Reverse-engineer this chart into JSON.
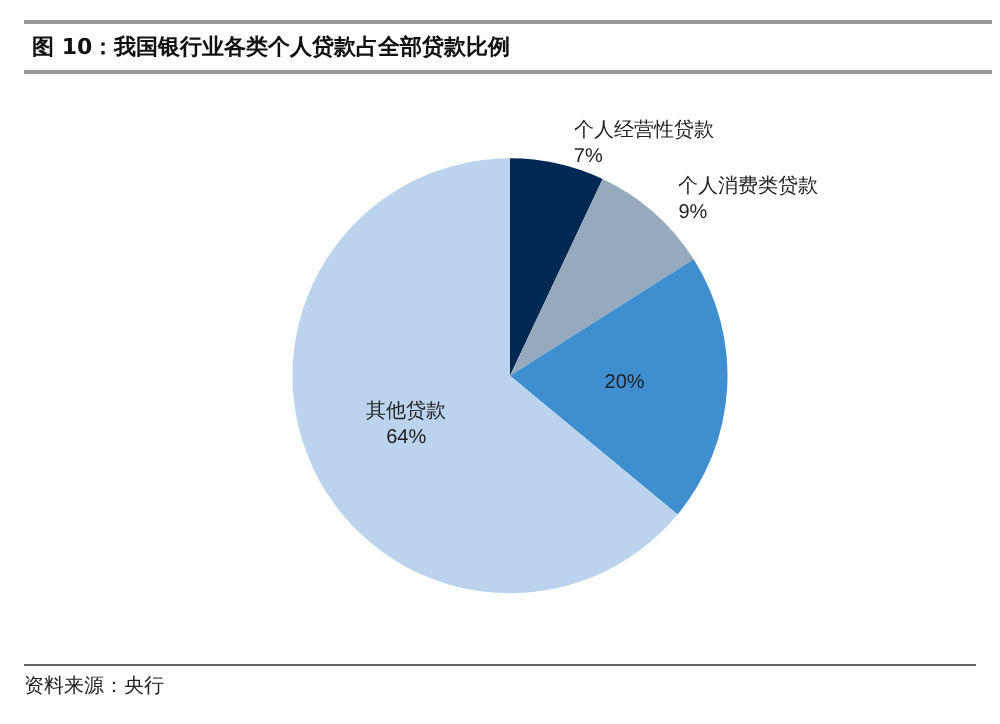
{
  "chart_data": {
    "type": "pie",
    "title": "图 10：我国银行业各类个人贷款占全部贷款比例",
    "categories": [
      "个人经营性贷款",
      "个人消费类贷款",
      null,
      "其他贷款"
    ],
    "values": [
      7,
      9,
      20,
      64
    ],
    "value_labels": [
      "7%",
      "9%",
      "20%",
      "64%"
    ],
    "colors": [
      "#002855",
      "#97aabd",
      "#3e8ed0",
      "#bcd3ee"
    ],
    "annotations": [
      "资料来源：央行"
    ]
  }
}
